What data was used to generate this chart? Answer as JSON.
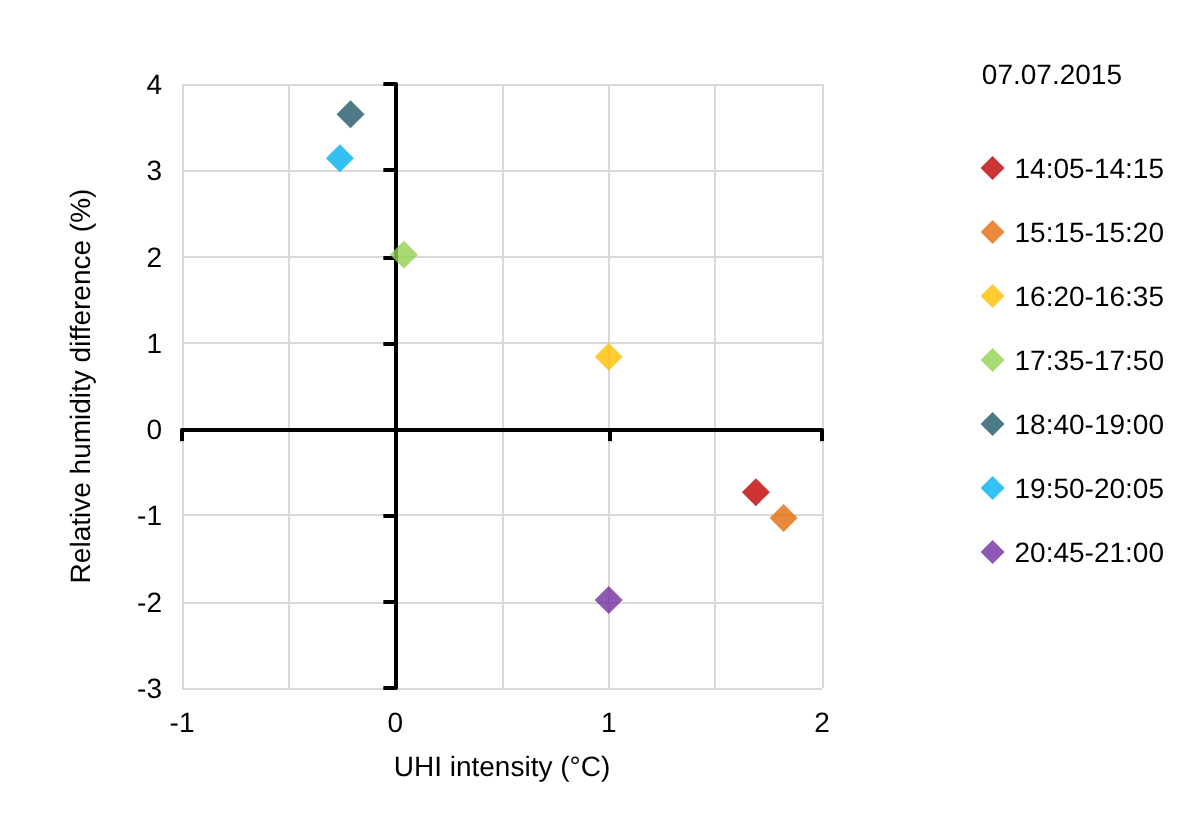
{
  "chart_data": {
    "type": "scatter",
    "xlabel": "UHI intensity (°C)",
    "ylabel": "Relative humidity difference (%)",
    "legend_title": "07.07.2015",
    "xlim": [
      -1,
      2
    ],
    "xticks": [
      -1,
      0,
      1,
      2
    ],
    "ylim": [
      -3,
      4
    ],
    "yticks": [
      -3,
      -2,
      -1,
      0,
      1,
      2,
      3,
      4
    ],
    "grid": true,
    "legend": "right",
    "marker": "diamond",
    "series": [
      {
        "name": "14:05-14:15",
        "color": "#c00000",
        "x": [
          1.69
        ],
        "values": [
          -0.73
        ]
      },
      {
        "name": "15:15-15:20",
        "color": "#e46c0a",
        "x": [
          1.82
        ],
        "values": [
          -1.03
        ]
      },
      {
        "name": "16:20-16:35",
        "color": "#ffc000",
        "x": [
          1.0
        ],
        "values": [
          0.84
        ]
      },
      {
        "name": "17:35-17:50",
        "color": "#92d050",
        "x": [
          0.04
        ],
        "values": [
          2.02
        ]
      },
      {
        "name": "18:40-19:00",
        "color": "#215968",
        "x": [
          -0.21
        ],
        "values": [
          3.65
        ]
      },
      {
        "name": "19:50-20:05",
        "color": "#00b0f0",
        "x": [
          -0.26
        ],
        "values": [
          3.14
        ]
      },
      {
        "name": "20:45-21:00",
        "color": "#7030a0",
        "x": [
          1.0
        ],
        "values": [
          -1.98
        ]
      }
    ]
  }
}
